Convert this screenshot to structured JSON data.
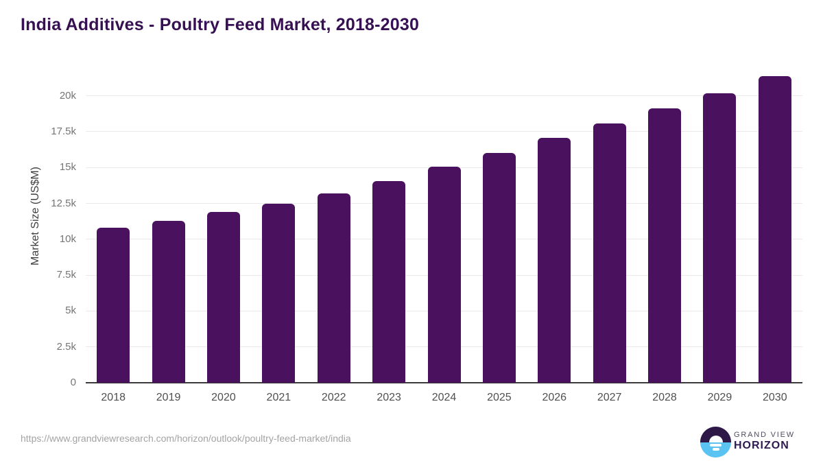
{
  "title": "India Additives - Poultry Feed Market, 2018-2030",
  "chart_data": {
    "type": "bar",
    "title": "India Additives - Poultry Feed Market, 2018-2030",
    "categories": [
      "2018",
      "2019",
      "2020",
      "2021",
      "2022",
      "2023",
      "2024",
      "2025",
      "2026",
      "2027",
      "2028",
      "2029",
      "2030"
    ],
    "values": [
      10800,
      11280,
      11880,
      12480,
      13170,
      14050,
      15050,
      16020,
      17080,
      18050,
      19110,
      20180,
      21360
    ],
    "xlabel": "",
    "ylabel": "Market Size (US$M)",
    "ylim": [
      0,
      21700
    ],
    "yticks": [
      0,
      2500,
      5000,
      7500,
      10000,
      12500,
      15000,
      17500,
      20000
    ],
    "ytick_labels": [
      "0",
      "2.5k",
      "5k",
      "7.5k",
      "10k",
      "12.5k",
      "15k",
      "17.5k",
      "20k"
    ],
    "grid": true,
    "legend": false
  },
  "colors": {
    "bar": "#4a115e",
    "title": "#371053",
    "axis_baseline": "#3a3a3a",
    "gridline": "#e9e9e9",
    "y_tick": "#757575",
    "x_tick": "#4f4f4f",
    "y_axis_title": "#3f3f3f",
    "source_url": "#a3a3a3",
    "logo_purple": "#2d1847",
    "logo_blue": "#5ac3f1",
    "logo_text_top": "#514b5e",
    "logo_text_bottom": "#2f1a4e"
  },
  "footer": {
    "source_url": "https://www.grandviewresearch.com/horizon/outlook/poultry-feed-market/india",
    "logo": {
      "top_text": "GRAND VIEW",
      "bottom_text": "HORIZON",
      "mark": "horizon-sunrise-icon"
    }
  }
}
